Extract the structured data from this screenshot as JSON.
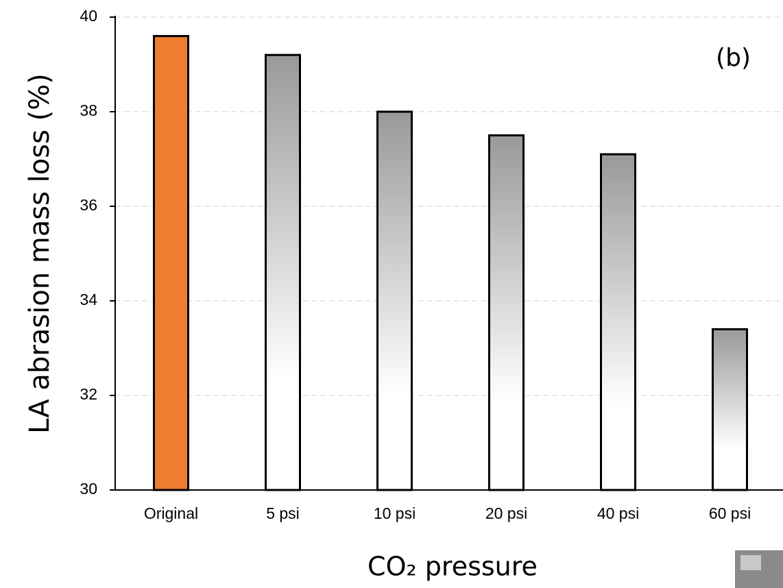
{
  "chart_data": {
    "type": "bar",
    "y_label": "LA abrasion mass loss (%)",
    "x_label": "CO₂ pressure",
    "annotation": "(b)",
    "categories": [
      "Original",
      "5 psi",
      "10 psi",
      "20 psi",
      "40 psi",
      "60 psi"
    ],
    "values": [
      39.6,
      39.2,
      38.0,
      37.5,
      37.1,
      33.4
    ],
    "bar_fills": [
      {
        "top": "#ED7D31",
        "bottom": "#ED7D31"
      },
      {
        "top": "#999999",
        "bottom": "#ffffff"
      },
      {
        "top": "#999999",
        "bottom": "#ffffff"
      },
      {
        "top": "#999999",
        "bottom": "#ffffff"
      },
      {
        "top": "#999999",
        "bottom": "#ffffff"
      },
      {
        "top": "#999999",
        "bottom": "#ffffff"
      }
    ],
    "ylim": [
      30,
      40
    ],
    "yticks": [
      30,
      32,
      34,
      36,
      38,
      40
    ],
    "grid": true
  }
}
